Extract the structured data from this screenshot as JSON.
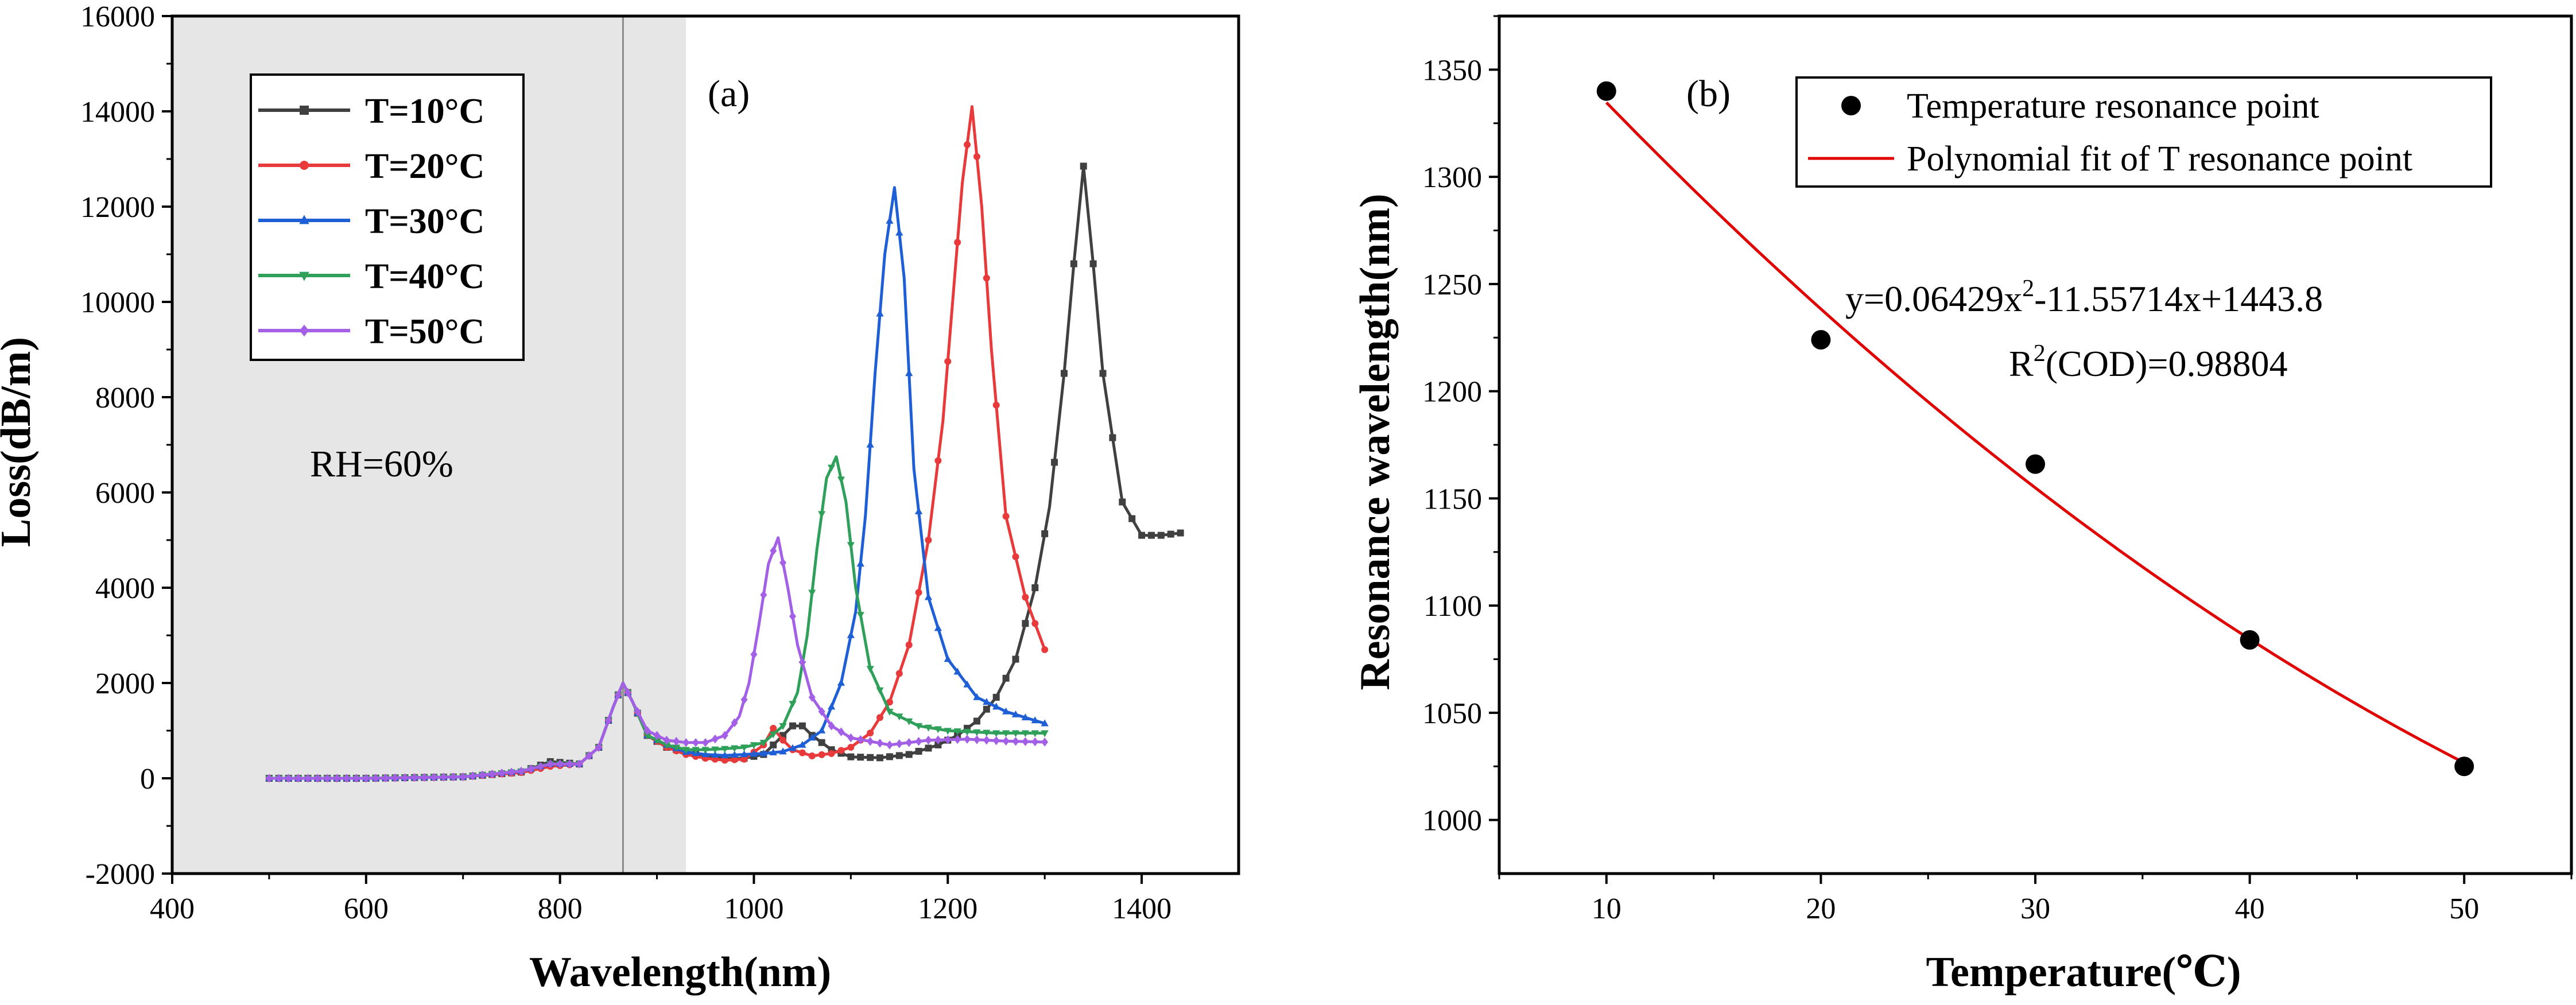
{
  "chart_data": [
    {
      "panel": "(a)",
      "type": "line",
      "xlabel": "Wavelength(nm)",
      "ylabel": "Loss(dB/m)",
      "xlim": [
        400,
        1500
      ],
      "ylim": [
        -2000,
        16000
      ],
      "xticks": [
        "400",
        "600",
        "800",
        "1000",
        "1200",
        "1400"
      ],
      "xtick_values": [
        400,
        600,
        800,
        1000,
        1200,
        1400
      ],
      "yticks": [
        "-2000",
        "0",
        "2000",
        "4000",
        "6000",
        "8000",
        "10000",
        "12000",
        "14000",
        "16000"
      ],
      "ytick_values": [
        -2000,
        0,
        2000,
        4000,
        6000,
        8000,
        10000,
        12000,
        14000,
        16000
      ],
      "shaded_region": [
        400,
        930
      ],
      "vline": 865,
      "annotation": "RH=60%",
      "legend_position": "top-left",
      "series": [
        {
          "name": "T=10°C",
          "color": "#404040",
          "marker": "square",
          "x": [
            500,
            600,
            700,
            760,
            790,
            820,
            840,
            855,
            865,
            875,
            890,
            910,
            930,
            950,
            970,
            990,
            1010,
            1030,
            1040,
            1050,
            1060,
            1080,
            1100,
            1130,
            1160,
            1190,
            1210,
            1230,
            1250,
            1270,
            1290,
            1305,
            1320,
            1330,
            1340,
            1350,
            1360,
            1380,
            1400,
            1420,
            1440
          ],
          "y": [
            0,
            0,
            30,
            130,
            350,
            300,
            650,
            1500,
            2000,
            1600,
            900,
            650,
            550,
            450,
            420,
            420,
            500,
            900,
            1100,
            1100,
            900,
            600,
            450,
            430,
            500,
            700,
            900,
            1200,
            1700,
            2500,
            4000,
            5700,
            8500,
            10800,
            12850,
            10800,
            8500,
            5800,
            5100,
            5100,
            5150
          ]
        },
        {
          "name": "T=20°C",
          "color": "#e83a3a",
          "marker": "circle",
          "x": [
            500,
            600,
            700,
            760,
            790,
            820,
            840,
            855,
            865,
            875,
            890,
            910,
            930,
            950,
            970,
            990,
            1010,
            1020,
            1030,
            1040,
            1060,
            1080,
            1100,
            1120,
            1140,
            1160,
            1180,
            1195,
            1205,
            1215,
            1225,
            1235,
            1245,
            1260,
            1280,
            1300
          ],
          "y": [
            0,
            0,
            30,
            120,
            250,
            300,
            650,
            1500,
            2000,
            1600,
            900,
            650,
            500,
            420,
            380,
            400,
            700,
            1050,
            800,
            600,
            470,
            520,
            650,
            950,
            1600,
            2800,
            5000,
            7500,
            10000,
            12500,
            14100,
            12000,
            9000,
            5500,
            3800,
            2700
          ]
        },
        {
          "name": "T=30°C",
          "color": "#1f5fd6",
          "marker": "triangle",
          "x": [
            500,
            600,
            700,
            760,
            790,
            820,
            840,
            855,
            865,
            875,
            890,
            910,
            930,
            950,
            970,
            990,
            1010,
            1030,
            1050,
            1070,
            1090,
            1105,
            1115,
            1125,
            1135,
            1145,
            1155,
            1165,
            1180,
            1200,
            1230,
            1260,
            1300
          ],
          "y": [
            0,
            0,
            30,
            150,
            300,
            300,
            650,
            1500,
            2000,
            1600,
            900,
            700,
            550,
            500,
            480,
            500,
            520,
            560,
            700,
            1000,
            2000,
            3500,
            5500,
            8500,
            11000,
            12400,
            10500,
            6500,
            3800,
            2500,
            1700,
            1400,
            1150
          ]
        },
        {
          "name": "T=40°C",
          "color": "#2fa05a",
          "marker": "triangle-down",
          "x": [
            500,
            600,
            700,
            760,
            790,
            820,
            840,
            855,
            865,
            875,
            890,
            910,
            930,
            950,
            970,
            990,
            1010,
            1030,
            1045,
            1055,
            1065,
            1075,
            1085,
            1095,
            1105,
            1120,
            1140,
            1170,
            1200,
            1250,
            1300
          ],
          "y": [
            0,
            0,
            30,
            150,
            300,
            300,
            650,
            1500,
            2000,
            1600,
            900,
            700,
            600,
            600,
            620,
            650,
            750,
            1100,
            1800,
            3000,
            4800,
            6300,
            6750,
            5800,
            4000,
            2300,
            1400,
            1100,
            1000,
            950,
            950
          ]
        },
        {
          "name": "T=50°C",
          "color": "#a360e6",
          "marker": "diamond",
          "x": [
            500,
            600,
            700,
            760,
            790,
            820,
            840,
            855,
            865,
            875,
            890,
            910,
            930,
            950,
            970,
            985,
            995,
            1005,
            1015,
            1025,
            1035,
            1045,
            1060,
            1080,
            1100,
            1140,
            1180,
            1220,
            1260,
            1300
          ],
          "y": [
            0,
            0,
            30,
            150,
            300,
            300,
            650,
            1500,
            2000,
            1600,
            1000,
            800,
            750,
            750,
            900,
            1300,
            2000,
            3200,
            4500,
            5050,
            4000,
            2800,
            1700,
            1100,
            850,
            700,
            800,
            820,
            780,
            760
          ]
        }
      ]
    },
    {
      "panel": "(b)",
      "type": "scatter",
      "xlabel": "Temperature(℃)",
      "ylabel": "Resonance wavelength(nm)",
      "xlim": [
        5,
        55
      ],
      "ylim": [
        975,
        1375
      ],
      "xticks": [
        "10",
        "20",
        "30",
        "40",
        "50"
      ],
      "xtick_values": [
        10,
        20,
        30,
        40,
        50
      ],
      "yticks": [
        "1000",
        "1050",
        "1100",
        "1150",
        "1200",
        "1250",
        "1300",
        "1350"
      ],
      "ytick_values": [
        1000,
        1050,
        1100,
        1150,
        1200,
        1250,
        1300,
        1350
      ],
      "legend_position": "top-right",
      "series": [
        {
          "name": "Temperature resonance point",
          "color": "#000000",
          "marker": "circle",
          "x": [
            10,
            20,
            30,
            40,
            50
          ],
          "y": [
            1340,
            1224,
            1166,
            1084,
            1025
          ]
        },
        {
          "name": "Polynomial fit of T resonance point",
          "color": "#e00000",
          "marker": "none",
          "fit": {
            "a": 0.06429,
            "b": -11.55714,
            "c": 1443.8
          }
        }
      ],
      "equation_prefix": "y=0.06429x",
      "equation_exp": "2",
      "equation_suffix": "-11.55714x+1443.8",
      "r2_prefix": "R",
      "r2_exp": "2",
      "r2_suffix": "(COD)=0.98804"
    }
  ]
}
